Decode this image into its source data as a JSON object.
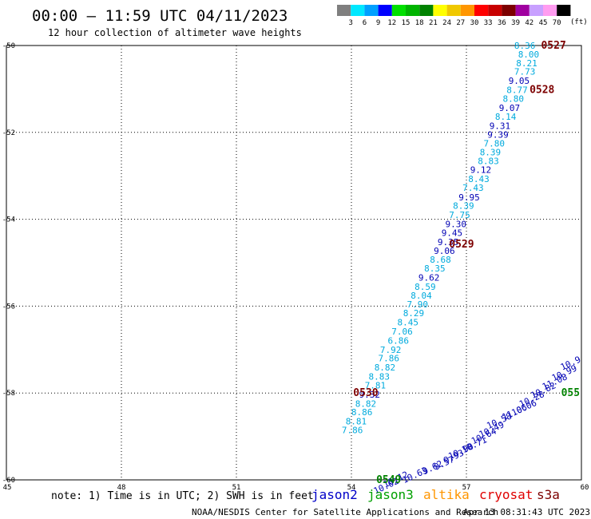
{
  "header": {
    "title": "00:00 – 11:59 UTC 04/11/2023",
    "subtitle": "12 hour collection of altimeter wave heights"
  },
  "colorbar": {
    "unit": "(ft)",
    "entries": [
      {
        "label": "3",
        "color": "#7f7f7f"
      },
      {
        "label": "6",
        "color": "#00e8ff"
      },
      {
        "label": "9",
        "color": "#00a0ff"
      },
      {
        "label": "12",
        "color": "#0000ff"
      },
      {
        "label": "15",
        "color": "#00e000"
      },
      {
        "label": "18",
        "color": "#00b400"
      },
      {
        "label": "21",
        "color": "#008200"
      },
      {
        "label": "24",
        "color": "#ffff00"
      },
      {
        "label": "27",
        "color": "#f0c800"
      },
      {
        "label": "30",
        "color": "#ff9600"
      },
      {
        "label": "33",
        "color": "#ff0000"
      },
      {
        "label": "36",
        "color": "#c80000"
      },
      {
        "label": "39",
        "color": "#7d0000"
      },
      {
        "label": "42",
        "color": "#a000a0"
      },
      {
        "label": "45",
        "color": "#c8a0ff"
      },
      {
        "label": "70",
        "color": "#ff9cf0"
      },
      {
        "label": "",
        "color": "#000000"
      }
    ]
  },
  "note": "note: 1) Time is in UTC; 2) SWH is in feet",
  "satellites": [
    {
      "name": "jason2",
      "color": "#0000c8"
    },
    {
      "name": "jason3",
      "color": "#00a000"
    },
    {
      "name": "altika",
      "color": "#ff9600"
    },
    {
      "name": "cryosat",
      "color": "#e00000"
    },
    {
      "name": "s3a",
      "color": "#7d0000"
    }
  ],
  "footer": {
    "left": "NOAA/NESDIS Center for Satellite Applications and Research",
    "right": "Apr 13 08:31:43 UTC 2023"
  },
  "chart_data": {
    "type": "scatter",
    "xlim": [
      45,
      60
    ],
    "ylim": [
      -60,
      -50
    ],
    "xticks": [
      "45",
      "48",
      "51",
      "54",
      "57",
      "60"
    ],
    "yticks": [
      "-50",
      "-52",
      "-54",
      "-56",
      "-58",
      "-60"
    ],
    "grid": true,
    "colors": {
      "light": "#00aadd",
      "dark": "#0000b4",
      "pass_dark": "#7d0000",
      "pass_green": "#008200"
    },
    "pass_labels": [
      {
        "text": "0527",
        "x": 59.6,
        "y": -50.0,
        "color": "pass_dark"
      },
      {
        "text": "0528",
        "x": 59.3,
        "y": -51.02,
        "color": "pass_dark"
      },
      {
        "text": "0529",
        "x": 57.2,
        "y": -54.58,
        "color": "pass_dark"
      },
      {
        "text": "0530",
        "x": 54.7,
        "y": -58.0,
        "color": "pass_dark"
      },
      {
        "text": "0549",
        "x": 55.3,
        "y": -60.0,
        "color": "pass_green"
      },
      {
        "text": "055",
        "x": 59.96,
        "y": -58.0,
        "color": "pass_green"
      }
    ],
    "track1": {
      "values": [
        "8.36",
        "8.00",
        "8.21",
        "7.73",
        "9.05",
        "8.77",
        "8.80",
        "9.07",
        "8.14",
        "9.31",
        "9.39",
        "7.80",
        "8.39",
        "8.83",
        "9.12",
        "8.43",
        "7.43",
        "9.95",
        "8.39",
        "7.75",
        "9.30",
        "9.45",
        "9.35",
        "9.06",
        "8.68",
        "8.35",
        "9.62",
        "8.59",
        "8.04",
        "7.90",
        "8.29",
        "8.45",
        "7.06",
        "6.86",
        "7.92",
        "7.86",
        "8.82",
        "8.83",
        "7.81",
        "9.32",
        "8.82",
        "8.86",
        "8.81",
        "7.86"
      ],
      "colors": [
        "light",
        "light",
        "light",
        "light",
        "dark",
        "light",
        "light",
        "dark",
        "light",
        "dark",
        "dark",
        "light",
        "light",
        "light",
        "dark",
        "light",
        "light",
        "dark",
        "light",
        "light",
        "dark",
        "dark",
        "dark",
        "dark",
        "light",
        "light",
        "dark",
        "light",
        "light",
        "light",
        "light",
        "light",
        "light",
        "light",
        "light",
        "light",
        "light",
        "light",
        "light",
        "dark",
        "light",
        "light",
        "light",
        "light"
      ],
      "x": [
        58.8,
        58.9,
        58.85,
        58.8,
        58.65,
        58.6,
        58.5,
        58.4,
        58.3,
        58.15,
        58.1,
        58.0,
        57.9,
        57.85,
        57.65,
        57.6,
        57.45,
        57.35,
        57.2,
        57.1,
        57.0,
        56.9,
        56.8,
        56.7,
        56.6,
        56.45,
        56.3,
        56.2,
        56.1,
        56.0,
        55.9,
        55.75,
        55.6,
        55.5,
        55.3,
        55.25,
        55.15,
        55.0,
        54.9,
        54.75,
        54.65,
        54.55,
        54.4,
        54.3
      ],
      "y": [
        -50.0,
        -50.2,
        -50.4,
        -50.6,
        -50.81,
        -51.02,
        -51.22,
        -51.43,
        -51.64,
        -51.85,
        -52.05,
        -52.25,
        -52.45,
        -52.66,
        -52.86,
        -53.07,
        -53.27,
        -53.49,
        -53.69,
        -53.9,
        -54.11,
        -54.31,
        -54.52,
        -54.72,
        -54.93,
        -55.13,
        -55.34,
        -55.55,
        -55.75,
        -55.96,
        -56.16,
        -56.37,
        -56.58,
        -56.79,
        -57.0,
        -57.2,
        -57.41,
        -57.62,
        -57.82,
        -58.03,
        -58.24,
        -58.44,
        -58.65,
        -58.85
      ]
    },
    "track2": {
      "values": [
        "10.9",
        "10.99",
        "11.08",
        "10.82",
        "10.28",
        "10.06",
        "11.06",
        "10.58",
        "10.49",
        "10.64",
        "10.71",
        "10.90",
        "9.93",
        "9.57",
        "9.62",
        "10.63",
        "10.12",
        "10.02"
      ],
      "x": [
        60.0,
        59.9,
        59.65,
        59.35,
        59.05,
        58.85,
        58.6,
        58.2,
        58.0,
        57.8,
        57.55,
        57.2,
        56.95,
        56.7,
        56.4,
        56.0,
        55.5,
        55.25
      ],
      "y": [
        -57.2,
        -57.4,
        -57.6,
        -57.8,
        -58.0,
        -58.2,
        -58.3,
        -58.5,
        -58.7,
        -58.85,
        -59.05,
        -59.2,
        -59.35,
        -59.5,
        -59.6,
        -59.75,
        -59.85,
        -60.0
      ]
    }
  }
}
